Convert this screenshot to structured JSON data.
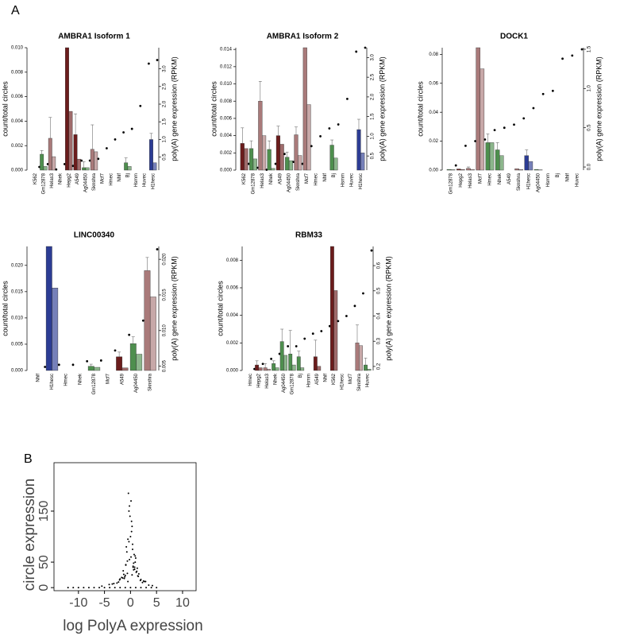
{
  "panel_labels": [
    "A",
    "B"
  ],
  "chart_data": [
    {
      "type": "bar",
      "title": "AMBRA1 Isoform 1",
      "ylabel": "count/total circles",
      "y2label": "poly(A) gene expression (RPKM)",
      "categories": [
        "K562",
        "Gm12878",
        "Helas3",
        "Nhek",
        "Hepg2",
        "A549",
        "Ag04450",
        "Sknshra",
        "Mcf7",
        "Hmec",
        "Nhlf",
        "Bj",
        "Hsmm",
        "Huvec",
        "H1hesc"
      ],
      "colors": [
        "#6b1c1c",
        "#4e8f4e",
        "#a97a7a",
        null,
        "#6b1c1c",
        "#6b1c1c",
        "#4e8f4e",
        "#a97a7a",
        null,
        null,
        null,
        "#4e8f4e",
        null,
        null,
        "#2c3c94"
      ],
      "series": [
        {
          "values": [
            0,
            0.0013,
            0.0026,
            0,
            0.01,
            0.0029,
            0.0002,
            0.0017,
            0,
            0,
            0,
            0.0006,
            0,
            0,
            0.0025
          ],
          "errors": [
            0,
            0.0003,
            0.0017,
            0,
            0,
            0.0017,
            0.0005,
            0.002,
            0,
            0,
            0,
            0.0004,
            0,
            0,
            0.0005
          ]
        },
        {
          "values": [
            0,
            0.0003,
            0.0011,
            0,
            0.0048,
            0.0009,
            0.0002,
            0.0015,
            0,
            0,
            0,
            0.0003,
            0,
            0,
            0.0006
          ]
        },
        {
          "axis": "y2",
          "values": [
            0.22,
            0.3,
            0.15,
            0.3,
            0.25,
            0.4,
            0.4,
            0.45,
            0.75,
            1.0,
            1.2,
            1.3,
            1.95,
            3.15,
            3.25
          ]
        }
      ],
      "ylim": [
        0,
        0.01
      ],
      "yticks": [
        {
          "value": 0,
          "label": "0.000"
        },
        {
          "value": 0.002,
          "label": "0.002"
        },
        {
          "value": 0.004,
          "label": "0.004"
        },
        {
          "value": 0.006,
          "label": "0.006"
        },
        {
          "value": 0.008,
          "label": "0.008"
        },
        {
          "value": 0.01,
          "label": "0.010"
        }
      ],
      "y2lim": [
        0.13,
        3.6
      ],
      "y2ticks": [
        0.5,
        {
          "value": 1,
          "label": "1.0"
        },
        1.5,
        {
          "value": 2,
          "label": "2.0"
        },
        2.5,
        {
          "value": 3,
          "label": "3.0"
        }
      ]
    },
    {
      "type": "bar",
      "title": "AMBRA1 Isoform 2",
      "ylabel": "count/total circles",
      "y2label": "poly(A) gene expression (RPKM)",
      "categories": [
        "K562",
        "Gm12878",
        "Helas3",
        "Nhek",
        "A549",
        "Ag04450",
        "Sknshra",
        "Mcf7",
        "Hmec",
        "Nhlf",
        "Bj",
        "Hsmm",
        "Huvec",
        "H1hesc"
      ],
      "colors": [
        "#6b1c1c",
        "#4e8f4e",
        "#a97a7a",
        "#4e8f4e",
        "#6b1c1c",
        "#4e8f4e",
        "#a97a7a",
        "#a97a7a",
        null,
        null,
        "#4e8f4e",
        null,
        null,
        "#2c3c94"
      ],
      "series": [
        {
          "values": [
            0.0031,
            0.0025,
            0.008,
            0.0024,
            0.004,
            0.0015,
            0.0041,
            0.0142,
            0,
            0,
            0.0029,
            0,
            0,
            0.0047
          ],
          "errors": [
            0.0018,
            0.0009,
            0.0023,
            0.001,
            0.0011,
            0.0006,
            0.0009,
            0,
            0,
            0,
            0.0006,
            0,
            0,
            0.0012
          ]
        },
        {
          "values": [
            0.0025,
            0.0013,
            0.004,
            0.0002,
            0.003,
            0.0011,
            0.0017,
            0.0076,
            0,
            0,
            0.0014,
            0,
            0,
            0.002
          ]
        },
        {
          "axis": "y2",
          "values": [
            0.3,
            0.2,
            0.15,
            0.3,
            0.55,
            0.35,
            0.3,
            0.75,
            1.0,
            1.2,
            1.3,
            1.95,
            3.15,
            3.25
          ]
        }
      ],
      "ylim": [
        0,
        0.0142
      ],
      "yticks": [
        {
          "value": 0,
          "label": "0.000"
        },
        {
          "value": 0.002,
          "label": "0.002"
        },
        {
          "value": 0.004,
          "label": "0.004"
        },
        {
          "value": 0.006,
          "label": "0.006"
        },
        {
          "value": 0.008,
          "label": "0.008"
        },
        {
          "value": 0.01,
          "label": "0.010"
        },
        {
          "value": 0.012,
          "label": "0.012"
        },
        {
          "value": 0.014,
          "label": "0.014"
        }
      ],
      "y2lim": [
        0.14,
        3.25
      ],
      "y2ticks": [
        0.5,
        {
          "value": 1,
          "label": "1.0"
        },
        1.5,
        {
          "value": 2,
          "label": "2.0"
        },
        2.5,
        {
          "value": 3,
          "label": "3.0"
        }
      ]
    },
    {
      "type": "bar",
      "title": "DOCK1",
      "ylabel": "count/total circles",
      "y2label": "poly(A) gene expression (RPKM)",
      "categories": [
        "Gm12878",
        "Hepg2",
        "Helas3",
        "Mcf7",
        "Hmec",
        "Nhek",
        "A549",
        "Sknshra",
        "H1hesc",
        "Ag04450",
        "Hsmm",
        "Bj",
        "Nhlf",
        "Huvec"
      ],
      "colors": [
        "#4e8f4e",
        "#6b1c1c",
        "#a97a7a",
        "#a97a7a",
        "#4e8f4e",
        "#4e8f4e",
        null,
        "#a97a7a",
        "#2c3c94",
        "#4e8f4e",
        null,
        null,
        null,
        null
      ],
      "series": [
        {
          "values": [
            0.0005,
            0.0008,
            0.0012,
            0.0846,
            0.019,
            0.014,
            0,
            0.001,
            0.01,
            0.0005,
            0,
            0,
            0,
            0
          ],
          "errors": [
            0,
            0,
            0.001,
            0,
            0.006,
            0.005,
            0,
            0,
            0.004,
            0,
            0,
            0,
            0,
            0
          ]
        },
        {
          "values": [
            0.0003,
            0.0004,
            0.0005,
            0.07,
            0.019,
            0.01,
            0,
            0.0004,
            0.006,
            0.0002,
            0,
            0,
            0,
            0
          ]
        },
        {
          "axis": "y2",
          "values": [
            0.02,
            0.27,
            0.33,
            0.35,
            0.47,
            0.5,
            0.54,
            0.62,
            0.75,
            0.93,
            0.97,
            1.38,
            1.42,
            1.5
          ]
        }
      ],
      "ylim": [
        0,
        0.0846
      ],
      "yticks": [
        {
          "value": 0,
          "label": "0.00"
        },
        {
          "value": 0.02,
          "label": "0.02"
        },
        {
          "value": 0.04,
          "label": "0.04"
        },
        {
          "value": 0.06,
          "label": "0.06"
        },
        {
          "value": 0.08,
          "label": "0.08"
        }
      ],
      "y2lim": [
        -0.04,
        1.52
      ],
      "y2ticks": [
        {
          "value": 0,
          "label": "0.0"
        },
        0.5,
        {
          "value": 1,
          "label": "1.0"
        },
        1.5
      ]
    },
    {
      "type": "bar",
      "title": "LINC00340",
      "ylabel": "count/total circles",
      "y2label": "poly(A) gene expression (RPKM)",
      "categories": [
        "Nhlf",
        "H1hesc",
        "Hmec",
        "Nhek",
        "Gm12878",
        "Mcf7",
        "A549",
        "Ag04450",
        "Sknshra"
      ],
      "colors": [
        null,
        "#2c3c94",
        null,
        null,
        "#4e8f4e",
        null,
        "#6b1c1c",
        "#4e8f4e",
        "#a97a7a"
      ],
      "series": [
        {
          "values": [
            0,
            0.0236,
            0,
            0,
            0.0008,
            0,
            0.0026,
            0.0051,
            0.019
          ],
          "errors": [
            0,
            0,
            0,
            0,
            0.0004,
            0,
            0.0009,
            0.0013,
            0.0025
          ]
        },
        {
          "values": [
            0,
            0.0157,
            0,
            0,
            0.0006,
            0,
            0.0005,
            0.0031,
            0.014
          ]
        },
        {
          "axis": "y2",
          "values": [
            0.0049,
            0.0052,
            0.0052,
            0.0057,
            0.0058,
            0.0072,
            0.0094,
            0.0114,
            0.0214
          ]
        }
      ],
      "ylim": [
        0,
        0.0236
      ],
      "yticks": [
        {
          "value": 0,
          "label": "0.000"
        },
        0.005,
        {
          "value": 0.01,
          "label": "0.010"
        },
        0.015,
        {
          "value": 0.02,
          "label": "0.020"
        }
      ],
      "y2lim": [
        0.0044,
        0.0218
      ],
      "y2ticks": [
        0.005,
        {
          "value": 0.01,
          "label": "0.010"
        },
        0.015,
        {
          "value": 0.02,
          "label": "0.020"
        }
      ]
    },
    {
      "type": "bar",
      "title": "RBM33",
      "ylabel": "count/total circles",
      "y2label": "poly(A) gene expression (RPKM)",
      "categories": [
        "Hmec",
        "Hepg2",
        "Helas3",
        "Nhek",
        "Ag04450",
        "Gm12878",
        "Bj",
        "Hsmm",
        "A549",
        "Nhlf",
        "K562",
        "H1hesc",
        "Mcf7",
        "Sknshra",
        "Huvec"
      ],
      "colors": [
        null,
        "#6b1c1c",
        "#a97a7a",
        "#4e8f4e",
        "#4e8f4e",
        "#4e8f4e",
        "#4e8f4e",
        null,
        "#6b1c1c",
        null,
        "#6b1c1c",
        "#2c3c94",
        "#a97a7a",
        "#a97a7a",
        "#4e8f4e"
      ],
      "series": [
        {
          "values": [
            0,
            0.0004,
            0.0002,
            0.0005,
            0.0021,
            0.0012,
            0.001,
            0,
            0.001,
            0,
            0.009,
            0,
            0,
            0.002,
            0.0004
          ],
          "errors": [
            0,
            0.0003,
            0.0003,
            0.0002,
            0.0009,
            0.0017,
            0.0004,
            0,
            0.0012,
            0,
            0,
            0,
            0,
            0.0013,
            0.0005
          ]
        },
        {
          "values": [
            0,
            0.0002,
            0.0001,
            0.0002,
            0.0011,
            0.0004,
            0.0002,
            0,
            0.0003,
            0,
            0.0058,
            0,
            0,
            0.0018,
            0.0001
          ]
        },
        {
          "axis": "y2",
          "values": [
            0.19,
            0.21,
            0.23,
            0.25,
            0.28,
            0.28,
            0.31,
            0.33,
            0.34,
            0.36,
            0.38,
            0.4,
            0.44,
            0.49,
            0.66
          ]
        }
      ],
      "ylim": [
        0,
        0.009
      ],
      "yticks": [
        {
          "value": 0,
          "label": "0.000"
        },
        {
          "value": 0.002,
          "label": "0.002"
        },
        {
          "value": 0.004,
          "label": "0.004"
        },
        {
          "value": 0.006,
          "label": "0.006"
        },
        {
          "value": 0.008,
          "label": "0.008"
        }
      ],
      "y2lim": [
        0.184,
        0.676
      ],
      "y2ticks": [
        0.2,
        0.3,
        0.4,
        0.5,
        0.6
      ]
    },
    {
      "type": "scatter",
      "xlabel": "log PolyA expression",
      "ylabel": "circle expression",
      "color": "#000000",
      "x": [
        -12,
        -11,
        -10,
        -9,
        -8,
        -7,
        -6,
        -5,
        -4,
        -3,
        -2,
        -1,
        0,
        1,
        2,
        3,
        4,
        5,
        -0.5,
        0.3,
        -1.2,
        0.8,
        1.5,
        -2.1,
        2.3,
        -0.2,
        0.6,
        -1.7,
        1.1,
        -0.9,
        0.1,
        -3.2,
        2.9,
        -2.6,
        0.4,
        -0.6,
        1.9,
        -1.4,
        0.9,
        -0.3,
        3.5,
        -4.1,
        0.2,
        -1.0,
        1.3,
        -0.1,
        0.7,
        -2.3,
        2.0,
        -0.8,
        0.5,
        -1.5,
        1.6,
        -0.4,
        0.0,
        -5.5,
        4.2,
        -0.7,
        1.2,
        0.3,
        -1.1,
        2.5,
        -0.2,
        0.6,
        -3.5,
        1.0,
        -0.5,
        0.8,
        0.2,
        -1.3,
        -0.9,
        0.4,
        1.4,
        -0.6,
        0.1,
        -2.0,
        2.7,
        0.9,
        -0.3,
        0.5
      ],
      "y": [
        0,
        0,
        0,
        0,
        0,
        0,
        0,
        0,
        0,
        0,
        0,
        0,
        0,
        0,
        0,
        0,
        0,
        0,
        12,
        25,
        18,
        40,
        22,
        15,
        10,
        55,
        35,
        20,
        30,
        45,
        60,
        8,
        12,
        9,
        75,
        28,
        14,
        33,
        50,
        90,
        5,
        6,
        110,
        24,
        38,
        140,
        65,
        11,
        16,
        80,
        42,
        19,
        27,
        185,
        100,
        3,
        4,
        70,
        32,
        120,
        21,
        13,
        160,
        48,
        7,
        58,
        95,
        36,
        130,
        26,
        44,
        85,
        23,
        52,
        170,
        17,
        12,
        62,
        150,
        40
      ],
      "xlim": [
        -14.7,
        12.6
      ],
      "xticks": [
        -10,
        -5,
        0,
        5,
        10
      ],
      "ylim": [
        -6,
        245
      ],
      "yticks": [
        0,
        50,
        150
      ]
    }
  ]
}
